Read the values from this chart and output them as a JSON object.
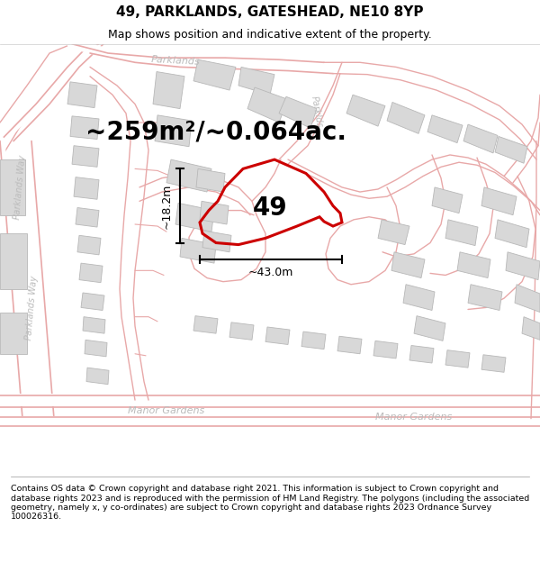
{
  "title": "49, PARKLANDS, GATESHEAD, NE10 8YP",
  "subtitle": "Map shows position and indicative extent of the property.",
  "footer": "Contains OS data © Crown copyright and database right 2021. This information is subject to Crown copyright and database rights 2023 and is reproduced with the permission of HM Land Registry. The polygons (including the associated geometry, namely x, y co-ordinates) are subject to Crown copyright and database rights 2023 Ordnance Survey 100026316.",
  "area_label": "~259m²/~0.064ac.",
  "number_label": "49",
  "width_label": "~43.0m",
  "height_label": "~18.2m",
  "map_bg": "#f7f5f5",
  "road_stroke": "#e8a8a8",
  "road_fill": "#ffffff",
  "building_fill": "#d8d8d8",
  "building_edge": "#b8b8b8",
  "plot_color": "#cc0000",
  "plot_fill": "none",
  "street_color": "#bbbbbb",
  "title_fontsize": 11,
  "subtitle_fontsize": 9,
  "footer_fontsize": 6.8,
  "area_fontsize": 20,
  "number_fontsize": 20,
  "dim_fontsize": 9,
  "street_fontsize": 8
}
